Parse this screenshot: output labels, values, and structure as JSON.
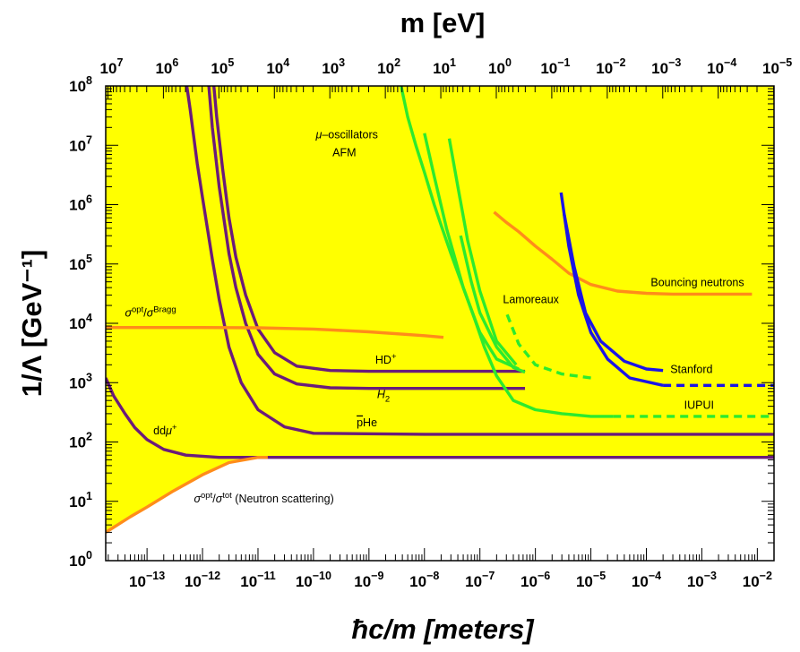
{
  "chart_data": {
    "type": "line",
    "title": "",
    "xlabel": "ħc/m [meters]",
    "ylabel": "1/Λ [GeV⁻¹]",
    "top_xlabel": "m [eV]",
    "x_scale": "log",
    "y_scale": "log",
    "xlim": [
      1.8e-14,
      0.02
    ],
    "ylim": [
      1,
      100000000.0
    ],
    "grid": false,
    "background_fill": "#ffff00",
    "x_ticks": [
      {
        "exp": -13,
        "label": "10^-13"
      },
      {
        "exp": -12,
        "label": "10^-12"
      },
      {
        "exp": -11,
        "label": "10^-11"
      },
      {
        "exp": -10,
        "label": "10^-10"
      },
      {
        "exp": -9,
        "label": "10^-9"
      },
      {
        "exp": -8,
        "label": "10^-8"
      },
      {
        "exp": -7,
        "label": "10^-7"
      },
      {
        "exp": -6,
        "label": "10^-6"
      },
      {
        "exp": -5,
        "label": "10^-5"
      },
      {
        "exp": -4,
        "label": "10^-4"
      },
      {
        "exp": -3,
        "label": "10^-3"
      },
      {
        "exp": -2,
        "label": "10^-2"
      }
    ],
    "y_ticks": [
      {
        "exp": 0,
        "label": "10^0"
      },
      {
        "exp": 1,
        "label": "10^1"
      },
      {
        "exp": 2,
        "label": "10^2"
      },
      {
        "exp": 3,
        "label": "10^3"
      },
      {
        "exp": 4,
        "label": "10^4"
      },
      {
        "exp": 5,
        "label": "10^5"
      },
      {
        "exp": 6,
        "label": "10^6"
      },
      {
        "exp": 7,
        "label": "10^7"
      },
      {
        "exp": 8,
        "label": "10^8"
      }
    ],
    "top_ticks": [
      {
        "exp": 7,
        "label": "10^7"
      },
      {
        "exp": 6,
        "label": "10^6"
      },
      {
        "exp": 5,
        "label": "10^5"
      },
      {
        "exp": 4,
        "label": "10^4"
      },
      {
        "exp": 3,
        "label": "10^3"
      },
      {
        "exp": 2,
        "label": "10^2"
      },
      {
        "exp": 1,
        "label": "10^1"
      },
      {
        "exp": 0,
        "label": "10^0"
      },
      {
        "exp": -1,
        "label": "10^-1"
      },
      {
        "exp": -2,
        "label": "10^-2"
      },
      {
        "exp": -3,
        "label": "10^-3"
      },
      {
        "exp": -4,
        "label": "10^-4"
      },
      {
        "exp": -5,
        "label": "10^-5"
      }
    ],
    "series": [
      {
        "color": "#6a1b7a",
        "dash": false,
        "x": [
          1.8e-14,
          2.5e-14,
          4e-14,
          6e-14,
          1e-13,
          2e-13,
          5e-13,
          2e-12,
          1e-10,
          1e-07,
          0.02
        ],
        "y": [
          1200,
          600,
          300,
          175,
          110,
          75,
          60,
          55,
          55,
          55,
          55
        ]
      },
      {
        "color": "#6a1b7a",
        "dash": false,
        "x": [
          5.2e-13,
          6e-13,
          8e-13,
          1e-12,
          1.5e-12,
          2e-12,
          3e-12,
          5e-12,
          1e-11,
          3e-11,
          1e-10,
          1e-08,
          0.02
        ],
        "y": [
          100000000.0,
          40000000.0,
          5000000.0,
          1300000.0,
          120000.0,
          25000.0,
          4000,
          1000,
          350,
          180,
          140,
          135,
          135
        ]
      },
      {
        "color": "#6a1b7a",
        "dash": false,
        "x": [
          1.3e-12,
          1.5e-12,
          2e-12,
          3e-12,
          4e-12,
          6e-12,
          1e-11,
          2e-11,
          5e-11,
          2e-10,
          1e-09,
          6.5e-07
        ],
        "y": [
          100000000.0,
          20000000.0,
          2000000.0,
          150000.0,
          40000.0,
          10000.0,
          3000,
          1400,
          950,
          820,
          800,
          800
        ]
      },
      {
        "color": "#6a1b7a",
        "dash": false,
        "x": [
          1.6e-12,
          1.8e-12,
          2.3e-12,
          3e-12,
          4e-12,
          6e-12,
          1e-11,
          2e-11,
          5e-11,
          2e-10,
          1e-09,
          6.5e-07
        ],
        "y": [
          100000000.0,
          30000000.0,
          4000000.0,
          600000.0,
          130000.0,
          30000.0,
          8000,
          3200,
          1900,
          1600,
          1550,
          1550
        ]
      },
      {
        "color": "#ff8c1a",
        "dash": false,
        "x": [
          1.8e-14,
          1e-13,
          1e-12,
          1e-11,
          1e-10,
          1e-09,
          1e-08,
          2.2e-08
        ],
        "y": [
          8500,
          8500,
          8500,
          8400,
          8000,
          7200,
          6200,
          5800
        ]
      },
      {
        "color": "#ff8c1a",
        "dash": false,
        "x": [
          1.8e-14,
          5e-14,
          1e-13,
          3e-13,
          1e-12,
          3e-12,
          1e-11,
          1.5e-11
        ],
        "y": [
          3,
          5.5,
          8,
          15,
          28,
          45,
          55,
          55
        ]
      },
      {
        "color": "#ff8c1a",
        "dash": false,
        "x": [
          1.8e-07,
          3e-07,
          5e-07,
          1e-06,
          2e-06,
          4e-06,
          1e-05,
          3e-05,
          0.0001,
          0.0003,
          0.008
        ],
        "y": [
          750000.0,
          500000.0,
          350000.0,
          200000.0,
          120000.0,
          70000.0,
          45000.0,
          35000.0,
          32000.0,
          31000.0,
          31000.0
        ]
      },
      {
        "color": "#2dea2d",
        "dash": false,
        "x": [
          3.8e-09,
          5e-09,
          7e-09,
          1e-08,
          1.5e-08,
          2e-08,
          3e-08,
          5e-08,
          8e-08,
          1.2e-07,
          2e-07,
          4e-07,
          1e-06,
          3e-06,
          1e-05,
          2.5e-05
        ],
        "y": [
          100000000.0,
          30000000.0,
          10000000.0,
          3500000.0,
          1000000.0,
          450000.0,
          150000.0,
          40000.0,
          12000.0,
          4000,
          1300,
          500,
          350,
          300,
          270,
          270
        ]
      },
      {
        "color": "#2dea2d",
        "dash": true,
        "x": [
          2.5e-05,
          0.0001,
          0.001,
          0.02
        ],
        "y": [
          270,
          270,
          270,
          270
        ]
      },
      {
        "color": "#2dea2d",
        "dash": false,
        "x": [
          1e-08,
          1.5e-08,
          2.5e-08,
          5e-08,
          1e-07,
          2e-07,
          5e-07
        ],
        "y": [
          16000000.0,
          3000000.0,
          400000.0,
          40000.0,
          7000,
          2500,
          1700
        ]
      },
      {
        "color": "#2dea2d",
        "dash": false,
        "x": [
          2.8e-08,
          4e-08,
          6e-08,
          1e-07,
          2e-07,
          4.5e-07
        ],
        "y": [
          13000000.0,
          2000000.0,
          250000.0,
          35000.0,
          5000,
          2000
        ]
      },
      {
        "color": "#2dea2d",
        "dash": false,
        "x": [
          4.5e-08,
          7e-08,
          1e-07,
          2e-07,
          4e-07,
          6.5e-07
        ],
        "y": [
          300000.0,
          50000.0,
          15000.0,
          4000,
          1800,
          1500
        ]
      },
      {
        "color": "#2dea2d",
        "dash": true,
        "x": [
          3.1e-07,
          5e-07,
          1e-06,
          3e-06,
          1e-05
        ],
        "y": [
          14000.0,
          4500,
          2000,
          1400,
          1200
        ]
      },
      {
        "color": "#1a14e6",
        "dash": false,
        "x": [
          2.9e-06,
          4e-06,
          6e-06,
          1e-05,
          2e-05,
          5e-05,
          0.0002
        ],
        "y": [
          1600000.0,
          200000.0,
          30000.0,
          7000,
          2500,
          1200,
          900
        ]
      },
      {
        "color": "#1a14e6",
        "dash": false,
        "x": [
          3.3e-06,
          5e-06,
          8e-06,
          1.5e-05,
          4e-05,
          0.0001,
          0.0002
        ],
        "y": [
          700000.0,
          90000.0,
          15000.0,
          5000,
          2300,
          1700,
          1600
        ]
      },
      {
        "color": "#1a14e6",
        "dash": true,
        "x": [
          0.0002,
          0.001,
          0.02
        ],
        "y": [
          900,
          900,
          900
        ]
      }
    ],
    "annotations": [
      {
        "key": "mu",
        "x": 1.1e-10,
        "y": 13000000.0,
        "parts": [
          {
            "t": "μ",
            "i": true
          },
          {
            "t": "–oscillators"
          }
        ]
      },
      {
        "key": "afm",
        "x": 2.2e-10,
        "y": 6500000.0,
        "parts": [
          {
            "t": "AFM"
          }
        ]
      },
      {
        "key": "bragg",
        "x": 4e-14,
        "y": 13000.0,
        "parts": [
          {
            "t": "σ",
            "i": true
          },
          {
            "t": "opt",
            "sup": true
          },
          {
            "t": "/"
          },
          {
            "t": "σ",
            "i": true
          },
          {
            "t": "Bragg",
            "sup": true
          }
        ]
      },
      {
        "key": "hdplus",
        "x": 1.3e-09,
        "y": 2100,
        "parts": [
          {
            "t": "HD"
          },
          {
            "t": "+",
            "sup": true
          }
        ]
      },
      {
        "key": "h2",
        "x": 1.4e-09,
        "y": 550,
        "parts": [
          {
            "t": "H",
            "i": true
          },
          {
            "t": "2",
            "sub": true
          }
        ]
      },
      {
        "key": "pbarhe",
        "x": 6e-10,
        "y": 185,
        "parts": [
          {
            "t": "p",
            "over": true
          },
          {
            "t": "He"
          }
        ]
      },
      {
        "key": "ddmu",
        "x": 1.3e-13,
        "y": 135,
        "parts": [
          {
            "t": "dd"
          },
          {
            "t": "μ",
            "i": true
          },
          {
            "t": "+",
            "sup": true
          }
        ]
      },
      {
        "key": "neutron",
        "x": 7e-13,
        "y": 9.5,
        "parts": [
          {
            "t": "σ",
            "i": true
          },
          {
            "t": "opt",
            "sup": true
          },
          {
            "t": "/"
          },
          {
            "t": "σ",
            "i": true
          },
          {
            "t": "tot",
            "sup": true
          },
          {
            "t": " (Neutron scattering)"
          }
        ]
      },
      {
        "key": "lamoreaux",
        "x": 2.6e-07,
        "y": 22000.0,
        "parts": [
          {
            "t": "Lamoreaux"
          }
        ]
      },
      {
        "key": "bouncing",
        "x": 0.00012,
        "y": 42000.0,
        "parts": [
          {
            "t": "Bouncing neutrons"
          }
        ]
      },
      {
        "key": "stanford",
        "x": 0.00027,
        "y": 1450,
        "parts": [
          {
            "t": "Stanford"
          }
        ]
      },
      {
        "key": "iupui",
        "x": 0.00048,
        "y": 360,
        "parts": [
          {
            "t": "IUPUI"
          }
        ]
      }
    ]
  }
}
